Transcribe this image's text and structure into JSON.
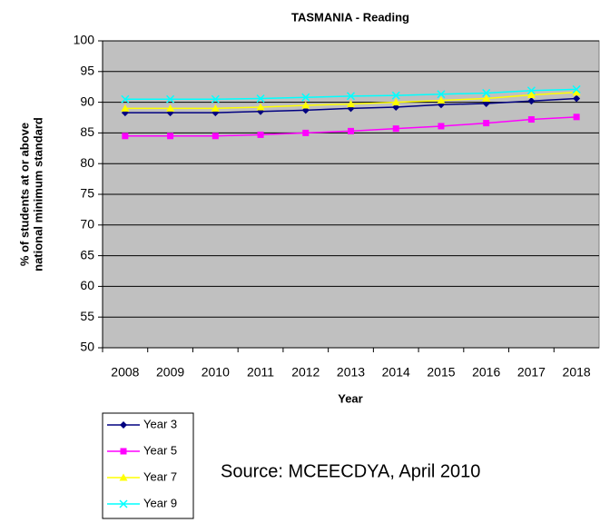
{
  "chart_data": {
    "type": "line",
    "title": "TASMANIA - Reading",
    "ylabel": [
      "% of students at or above",
      "national minimum standard"
    ],
    "xlabel": "Year",
    "annotation": "Source: MCEECDYA, April 2010",
    "categories": [
      "2008",
      "2009",
      "2010",
      "2011",
      "2012",
      "2013",
      "2014",
      "2015",
      "2016",
      "2017",
      "2018"
    ],
    "series": [
      {
        "name": "Year 3",
        "color": "#000080",
        "marker": "diamond",
        "values": [
          88.3,
          88.3,
          88.3,
          88.5,
          88.7,
          89.0,
          89.2,
          89.6,
          89.8,
          90.2,
          90.6
        ]
      },
      {
        "name": "Year 5",
        "color": "#ff00ff",
        "marker": "square",
        "values": [
          84.5,
          84.5,
          84.5,
          84.7,
          85.0,
          85.3,
          85.7,
          86.1,
          86.6,
          87.2,
          87.6
        ]
      },
      {
        "name": "Year 7",
        "color": "#ffff00",
        "marker": "triangle",
        "values": [
          89.0,
          89.0,
          89.0,
          89.2,
          89.5,
          89.7,
          90.0,
          90.3,
          90.6,
          91.2,
          91.6
        ]
      },
      {
        "name": "Year 9",
        "color": "#00ffff",
        "marker": "x",
        "values": [
          90.5,
          90.5,
          90.5,
          90.6,
          90.8,
          91.0,
          91.1,
          91.3,
          91.5,
          91.9,
          92.1
        ]
      }
    ],
    "ylim": [
      50,
      100
    ],
    "yticks": [
      50,
      55,
      60,
      65,
      70,
      75,
      80,
      85,
      90,
      95,
      100
    ],
    "grid": true,
    "background": "#c0c0c0",
    "legend": "bottom-left"
  }
}
